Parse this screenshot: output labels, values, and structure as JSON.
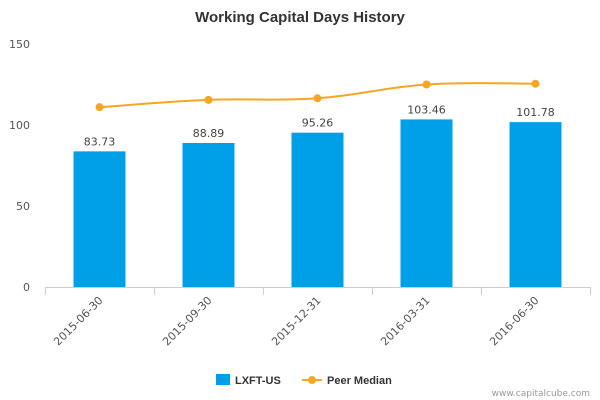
{
  "chart_data": {
    "type": "bar",
    "title": "Working Capital Days History",
    "categories": [
      "2015-06-30",
      "2015-09-30",
      "2015-12-31",
      "2016-03-31",
      "2016-06-30"
    ],
    "ylim": [
      0,
      150
    ],
    "yticks": [
      0,
      50,
      100,
      150
    ],
    "grid": false,
    "legend_position": "bottom",
    "series": [
      {
        "name": "LXFT-US",
        "type": "bar",
        "color": "#00a0e8",
        "values": [
          83.73,
          88.89,
          95.26,
          103.46,
          101.78
        ],
        "data_labels": [
          "83.73",
          "88.89",
          "95.26",
          "103.46",
          "101.78"
        ]
      },
      {
        "name": "Peer Median",
        "type": "line",
        "color": "#f5a623",
        "values": [
          111,
          115.5,
          116.5,
          125,
          125.5
        ]
      }
    ]
  },
  "credit": "www.capitalcube.com"
}
